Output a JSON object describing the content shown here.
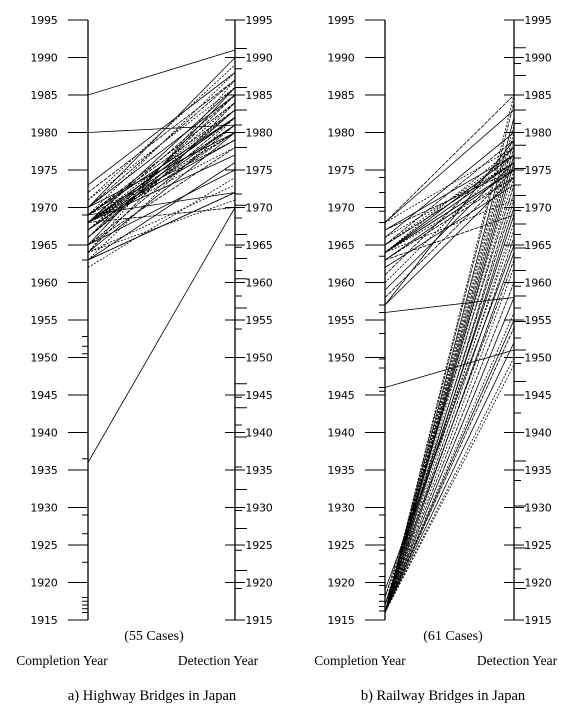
{
  "figure": {
    "panels": [
      {
        "id": "highway",
        "title": "a) Highway Bridges in Japan",
        "left_axis_label": "Completion Year",
        "right_axis_label": "Detection Year",
        "case_label": "(55 Cases)"
      },
      {
        "id": "railway",
        "title": "b) Railway Bridges in Japan",
        "left_axis_label": "Completion Year",
        "right_axis_label": "Detection Year",
        "case_label": "(61 Cases)"
      }
    ]
  },
  "chart_data": [
    {
      "type": "parallel_coordinates",
      "title": "a) Highway Bridges in Japan",
      "axes": [
        "Completion Year",
        "Detection Year"
      ],
      "ylim": [
        1915,
        1995
      ],
      "ticks": [
        1915,
        1920,
        1925,
        1930,
        1935,
        1940,
        1945,
        1950,
        1955,
        1960,
        1965,
        1970,
        1975,
        1980,
        1985,
        1990,
        1995
      ],
      "annotation": "(55 Cases)",
      "pairs": [
        [
          1985,
          1991
        ],
        [
          1980,
          1981
        ],
        [
          1936,
          1970
        ],
        [
          1969,
          1972
        ],
        [
          1968,
          1970
        ],
        [
          1963,
          1972
        ],
        [
          1964,
          1971
        ],
        [
          1965,
          1981
        ],
        [
          1966,
          1983
        ],
        [
          1967,
          1984
        ],
        [
          1968,
          1985
        ],
        [
          1968,
          1986
        ],
        [
          1969,
          1988
        ],
        [
          1970,
          1987
        ],
        [
          1970,
          1990
        ],
        [
          1971,
          1989
        ],
        [
          1968,
          1982
        ],
        [
          1968,
          1982
        ],
        [
          1968,
          1981
        ],
        [
          1969,
          1983
        ],
        [
          1969,
          1982
        ],
        [
          1968,
          1980
        ],
        [
          1967,
          1980
        ],
        [
          1968,
          1979
        ],
        [
          1968,
          1978
        ],
        [
          1965,
          1978
        ],
        [
          1964,
          1980
        ],
        [
          1963,
          1982
        ],
        [
          1964,
          1984
        ],
        [
          1963,
          1976
        ],
        [
          1962,
          1974
        ],
        [
          1963,
          1972
        ],
        [
          1968,
          1977
        ],
        [
          1968,
          1981
        ],
        [
          1969,
          1979
        ],
        [
          1970,
          1980
        ],
        [
          1967,
          1983
        ],
        [
          1966,
          1985
        ],
        [
          1965,
          1986
        ],
        [
          1964,
          1987
        ],
        [
          1966,
          1982
        ],
        [
          1967,
          1981
        ],
        [
          1968,
          1983
        ],
        [
          1969,
          1984
        ],
        [
          1970,
          1985
        ],
        [
          1971,
          1986
        ],
        [
          1972,
          1987
        ],
        [
          1973,
          1988
        ],
        [
          1968,
          1982
        ],
        [
          1968,
          1981
        ],
        [
          1968,
          1982
        ],
        [
          1968,
          1980
        ],
        [
          1969,
          1982
        ],
        [
          1965,
          1975
        ],
        [
          1964,
          1973
        ]
      ],
      "left_extra_ticks": [
        1969,
        1963,
        1952.8,
        1951.5,
        1950.5,
        1950,
        1936.5,
        1929,
        1926.5,
        1922.7,
        1920,
        1918,
        1917.5,
        1917,
        1916.5,
        1916
      ],
      "right_extra_ticks": [
        1991.2,
        1988.5,
        1986,
        1985,
        1983,
        1981,
        1978,
        1971.8,
        1970.3,
        1968.6,
        1966.4,
        1964.7,
        1963.2,
        1961.6,
        1960.5,
        1958.2,
        1956.6,
        1953.8,
        1946.5,
        1944.7,
        1943.3,
        1941,
        1939.4,
        1935.4,
        1932.4,
        1929.6,
        1927.2,
        1924.3,
        1921.6,
        1919.2
      ]
    },
    {
      "type": "parallel_coordinates",
      "title": "b) Railway Bridges in Japan",
      "axes": [
        "Completion Year",
        "Detection Year"
      ],
      "ylim": [
        1915,
        1995
      ],
      "ticks": [
        1915,
        1920,
        1925,
        1930,
        1935,
        1940,
        1945,
        1950,
        1955,
        1960,
        1965,
        1970,
        1975,
        1980,
        1985,
        1990,
        1995
      ],
      "annotation": "(61 Cases)",
      "pairs": [
        [
          1946,
          1951
        ],
        [
          1956,
          1958
        ],
        [
          1957,
          1974
        ],
        [
          1957,
          1979
        ],
        [
          1958,
          1975
        ],
        [
          1959,
          1976
        ],
        [
          1960,
          1977
        ],
        [
          1961,
          1978
        ],
        [
          1962,
          1973
        ],
        [
          1964,
          1974
        ],
        [
          1964,
          1975
        ],
        [
          1964,
          1976
        ],
        [
          1965,
          1977
        ],
        [
          1965,
          1976
        ],
        [
          1963,
          1975
        ],
        [
          1964,
          1978
        ],
        [
          1965,
          1979
        ],
        [
          1966,
          1980
        ],
        [
          1966,
          1976
        ],
        [
          1967,
          1975
        ],
        [
          1967,
          1977
        ],
        [
          1968,
          1978
        ],
        [
          1968,
          1985
        ],
        [
          1968,
          1983
        ],
        [
          1964,
          1971
        ],
        [
          1963,
          1969
        ],
        [
          1964,
          1975
        ],
        [
          1965,
          1976
        ],
        [
          1963,
          1974
        ],
        [
          1964,
          1977
        ],
        [
          1916,
          1985
        ],
        [
          1916,
          1984
        ],
        [
          1916,
          1982
        ],
        [
          1916,
          1980
        ],
        [
          1916,
          1978
        ],
        [
          1916,
          1976
        ],
        [
          1916,
          1974
        ],
        [
          1916,
          1972
        ],
        [
          1916,
          1970
        ],
        [
          1916,
          1968
        ],
        [
          1916,
          1966
        ],
        [
          1916,
          1964
        ],
        [
          1916,
          1962
        ],
        [
          1916,
          1960
        ],
        [
          1916,
          1958
        ],
        [
          1916,
          1956
        ],
        [
          1916,
          1954
        ],
        [
          1916,
          1952
        ],
        [
          1916,
          1950
        ],
        [
          1917,
          1971
        ],
        [
          1917,
          1969
        ],
        [
          1918,
          1967
        ],
        [
          1918,
          1973
        ],
        [
          1919,
          1965
        ],
        [
          1916,
          1981
        ],
        [
          1916,
          1979
        ],
        [
          1916,
          1977
        ],
        [
          1917,
          1975
        ],
        [
          1917,
          1963
        ],
        [
          1916,
          1955
        ],
        [
          1916,
          1949
        ]
      ],
      "left_extra_ticks": [
        1974,
        1972,
        1969.5,
        1968,
        1963.5,
        1957,
        1956,
        1953.2,
        1949.8,
        1948.6,
        1946,
        1945.5,
        1930,
        1929,
        1926,
        1924.3,
        1922.5,
        1920.8,
        1919.6,
        1918.4,
        1917.5,
        1916.8,
        1916.2
      ],
      "right_extra_ticks": [
        1991.3,
        1989.2,
        1987.6,
        1985,
        1983,
        1981.2,
        1978.3,
        1976.6,
        1975.2,
        1973,
        1971.6,
        1969.6,
        1967.8,
        1966.4,
        1964.6,
        1963.3,
        1961.6,
        1959.5,
        1958.2,
        1956.6,
        1954.8,
        1952.6,
        1951,
        1949.2,
        1946.8,
        1942.6,
        1936.2,
        1933.6,
        1930.2,
        1927.3,
        1924.6,
        1921.8,
        1919.2
      ]
    }
  ]
}
